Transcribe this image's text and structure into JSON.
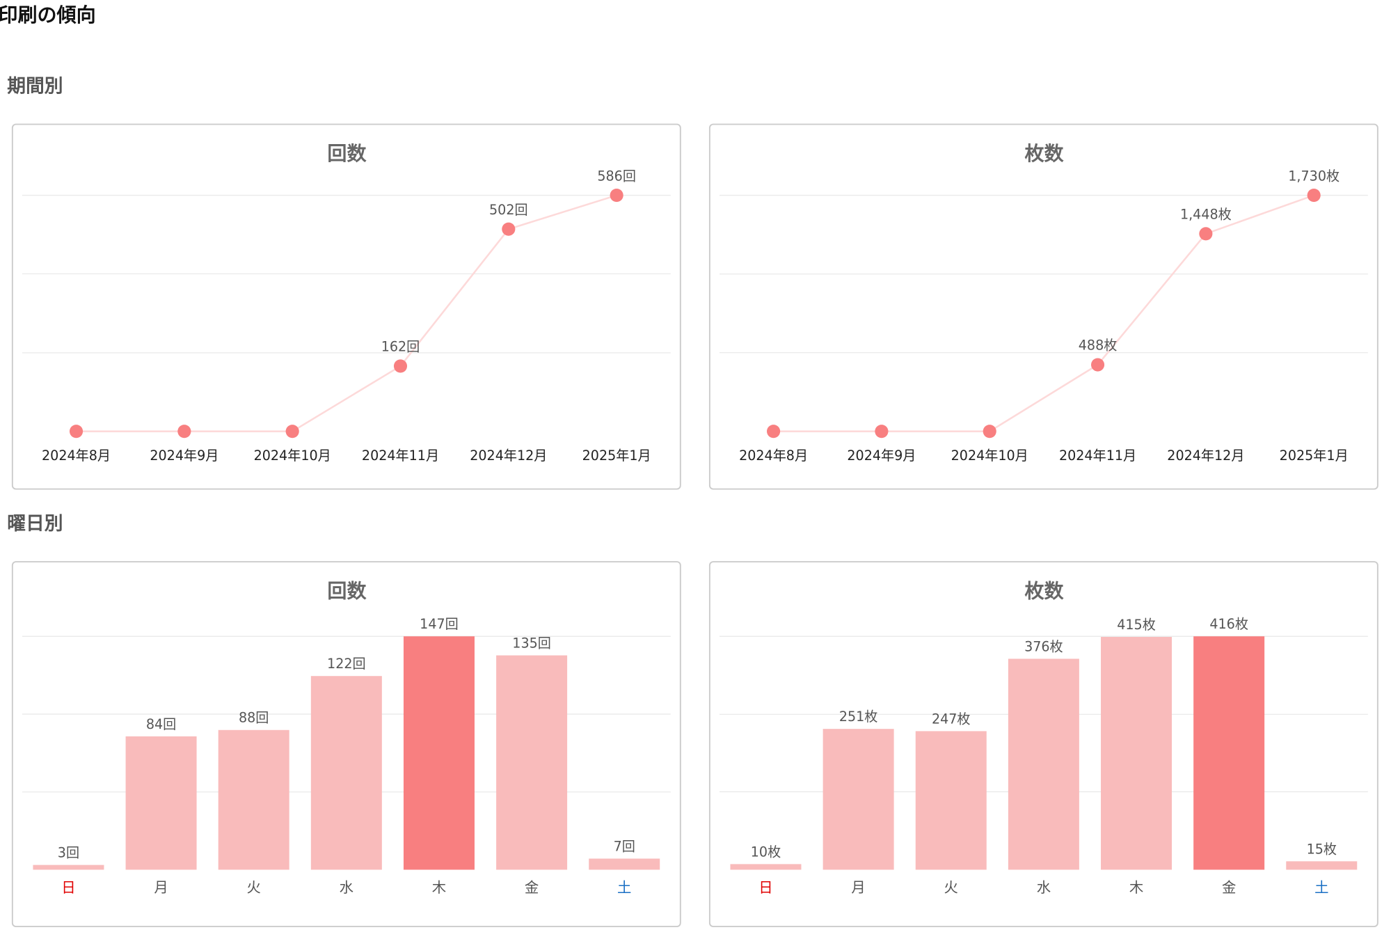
{
  "page": {
    "title": "印刷の傾向",
    "sections": [
      "期間別",
      "曜日別"
    ]
  },
  "chart_data": [
    {
      "type": "line",
      "title": "回数",
      "categories": [
        "2024年8月",
        "2024年9月",
        "2024年10月",
        "2024年11月",
        "2024年12月",
        "2025年1月"
      ],
      "values": [
        0,
        0,
        0,
        162,
        502,
        586
      ],
      "value_labels": [
        null,
        null,
        null,
        "162回",
        "502回",
        "586回"
      ],
      "color": "#f87f80",
      "line_color": "#fdd9d9",
      "ylim": [
        0,
        586
      ],
      "gridlines": [
        195,
        391,
        586
      ]
    },
    {
      "type": "line",
      "title": "枚数",
      "categories": [
        "2024年8月",
        "2024年9月",
        "2024年10月",
        "2024年11月",
        "2024年12月",
        "2025年1月"
      ],
      "values": [
        0,
        0,
        0,
        488,
        1448,
        1730
      ],
      "value_labels": [
        null,
        null,
        null,
        "488枚",
        "1,448枚",
        "1,730枚"
      ],
      "color": "#f87f80",
      "line_color": "#fdd9d9",
      "ylim": [
        0,
        1730
      ],
      "gridlines": [
        577,
        1153,
        1730
      ]
    },
    {
      "type": "bar",
      "title": "回数",
      "categories": [
        "日",
        "月",
        "火",
        "水",
        "木",
        "金",
        "土"
      ],
      "category_colors": [
        "#e00000",
        "#555555",
        "#555555",
        "#555555",
        "#555555",
        "#555555",
        "#1a6fc4"
      ],
      "values": [
        3,
        84,
        88,
        122,
        147,
        135,
        7
      ],
      "value_labels": [
        "3回",
        "84回",
        "88回",
        "122回",
        "147回",
        "135回",
        "7回"
      ],
      "colors": [
        "#f9bbbb",
        "#f9bbbb",
        "#f9bbbb",
        "#f9bbbb",
        "#f87f80",
        "#f9bbbb",
        "#f9bbbb"
      ],
      "ylim": [
        0,
        147
      ],
      "gridlines": [
        49,
        98,
        147
      ]
    },
    {
      "type": "bar",
      "title": "枚数",
      "categories": [
        "日",
        "月",
        "火",
        "水",
        "木",
        "金",
        "土"
      ],
      "category_colors": [
        "#e00000",
        "#555555",
        "#555555",
        "#555555",
        "#555555",
        "#555555",
        "#1a6fc4"
      ],
      "values": [
        10,
        251,
        247,
        376,
        415,
        416,
        15
      ],
      "value_labels": [
        "10枚",
        "251枚",
        "247枚",
        "376枚",
        "415枚",
        "416枚",
        "15枚"
      ],
      "colors": [
        "#f9bbbb",
        "#f9bbbb",
        "#f9bbbb",
        "#f9bbbb",
        "#f9bbbb",
        "#f87f80",
        "#f9bbbb"
      ],
      "ylim": [
        0,
        416
      ],
      "gridlines": [
        139,
        277,
        416
      ]
    }
  ]
}
